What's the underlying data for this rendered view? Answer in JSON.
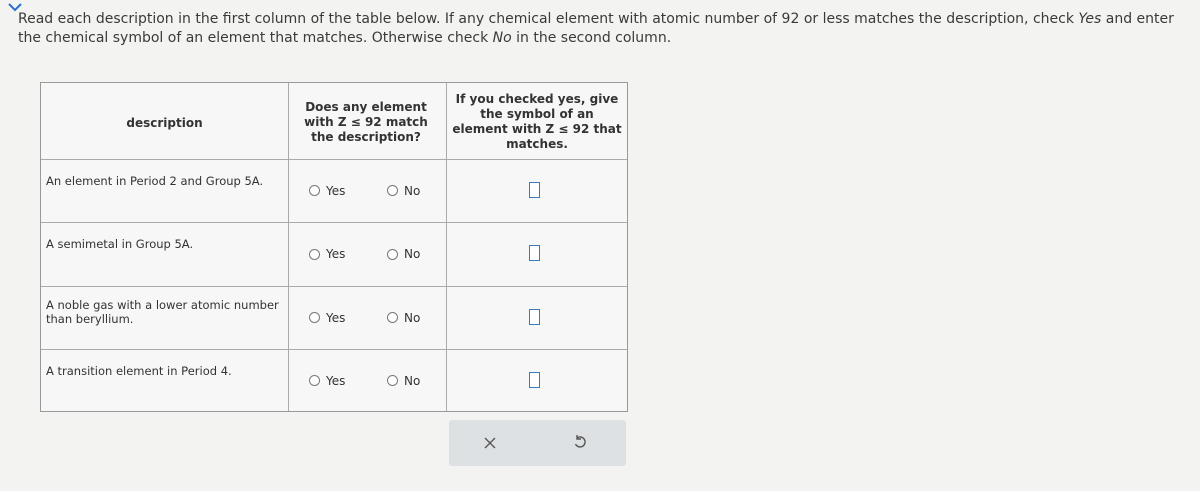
{
  "instructions": [
    "Read each description in the first column of the table below. If any chemical element with atomic number of 92 or less matches the description, check ",
    "Yes",
    " and enter the chemical symbol of an element that matches. Otherwise check ",
    "No",
    " in the second column."
  ],
  "table": {
    "header": [
      "description",
      "Does any element with Z ≤ 92 match the description?",
      "If you checked yes, give the symbol of an element with Z ≤ 92 that matches."
    ],
    "rows": [
      {
        "description": "An element in Period 2 and Group 5A.",
        "options": [
          "Yes",
          "No"
        ]
      },
      {
        "description": "A semimetal in Group 5A.",
        "options": [
          "Yes",
          "No"
        ]
      },
      {
        "description": "A noble gas with a lower atomic number than beryllium.",
        "options": [
          "Yes",
          "No"
        ]
      },
      {
        "description": "A transition element in Period 4.",
        "options": [
          "Yes",
          "No"
        ]
      }
    ]
  }
}
